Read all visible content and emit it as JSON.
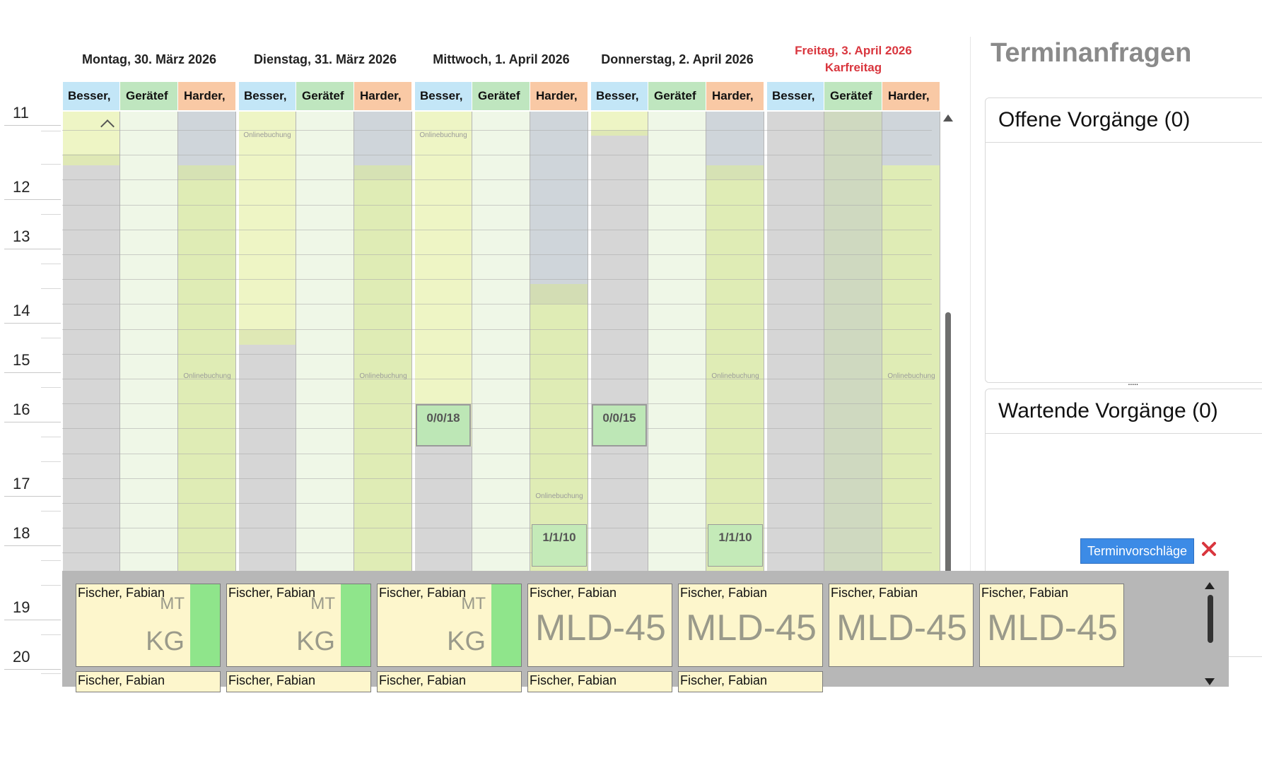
{
  "calendar": {
    "hours": [
      "11",
      "12",
      "13",
      "14",
      "15",
      "16",
      "17",
      "18",
      "19",
      "20"
    ],
    "days": [
      {
        "label": "Montag, 30. März 2026",
        "holiday": false,
        "sub": ""
      },
      {
        "label": "Dienstag, 31. März 2026",
        "holiday": false,
        "sub": ""
      },
      {
        "label": "Mittwoch, 1. April 2026",
        "holiday": false,
        "sub": ""
      },
      {
        "label": "Donnerstag, 2. April 2026",
        "holiday": false,
        "sub": ""
      },
      {
        "label": "Freitag, 3. April 2026",
        "holiday": true,
        "sub": "Karfreitag"
      }
    ],
    "resources": [
      "Besser,",
      "Gerätef",
      "Harder,"
    ],
    "resource_colors": [
      "#c3e6f7",
      "#bfe6bf",
      "#f9c9a5"
    ],
    "onlinebuchung_label": "Onlinebuchung",
    "appointments": [
      {
        "label": "0/0/18"
      },
      {
        "label": "0/0/15"
      },
      {
        "label": "1/1/10"
      },
      {
        "label": "1/1/10"
      }
    ]
  },
  "right_panel": {
    "title": "Terminanfragen",
    "open_label": "Offene Vorgänge (0)",
    "waiting_label": "Wartende Vorgänge (0)",
    "divider": "....."
  },
  "proposals": {
    "button_label": "Terminvorschläge",
    "cards": [
      {
        "name": "Fischer, Fabian",
        "type": "kg",
        "mt": "MT",
        "kg": "KG"
      },
      {
        "name": "Fischer, Fabian",
        "type": "kg",
        "mt": "MT",
        "kg": "KG"
      },
      {
        "name": "Fischer, Fabian",
        "type": "kg",
        "mt": "MT",
        "kg": "KG"
      },
      {
        "name": "Fischer, Fabian",
        "type": "mld",
        "mld": "MLD-45"
      },
      {
        "name": "Fischer, Fabian",
        "type": "mld",
        "mld": "MLD-45"
      },
      {
        "name": "Fischer, Fabian",
        "type": "mld",
        "mld": "MLD-45"
      },
      {
        "name": "Fischer, Fabian",
        "type": "mld",
        "mld": "MLD-45"
      }
    ],
    "cards_row2": [
      "Fischer, Fabian",
      "Fischer, Fabian",
      "Fischer, Fabian",
      "Fischer, Fabian",
      "Fischer, Fabian"
    ]
  }
}
